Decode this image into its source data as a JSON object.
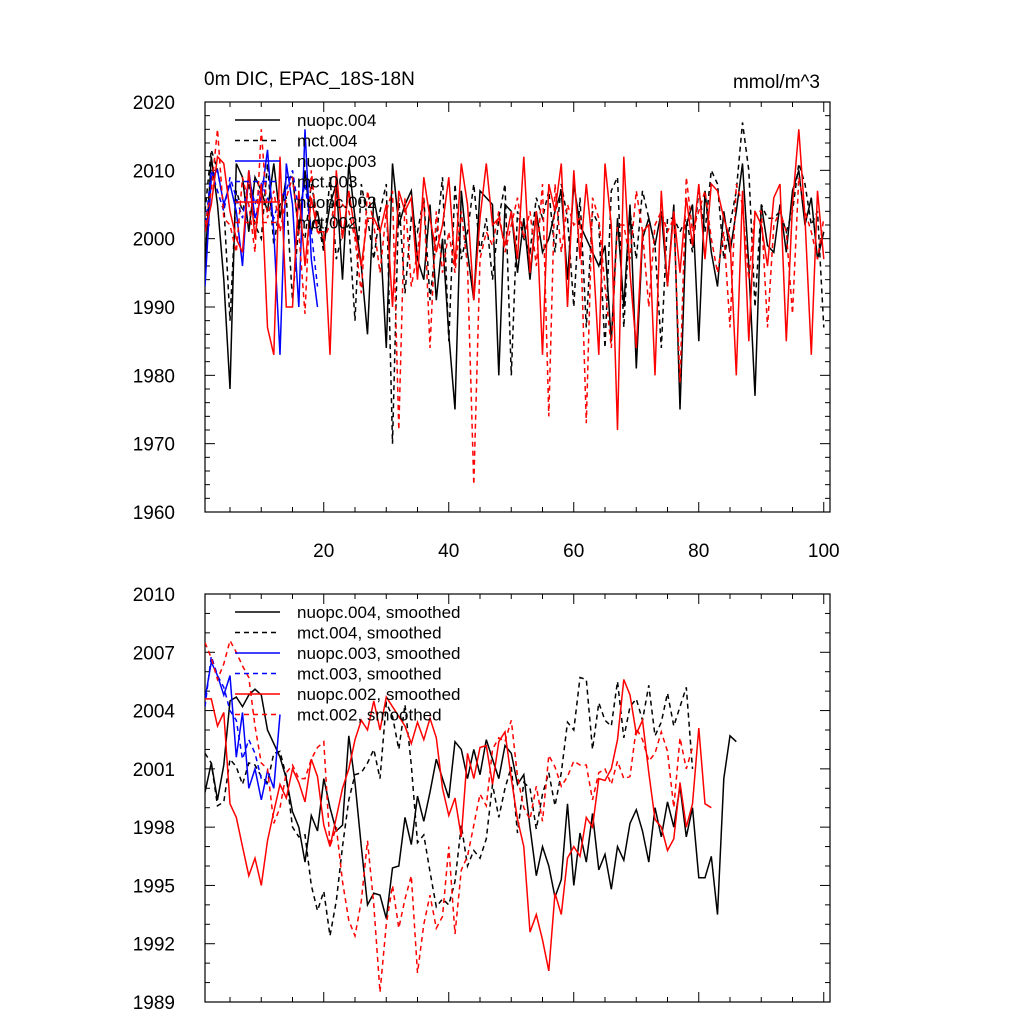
{
  "chart_data": [
    {
      "type": "line",
      "title": "0m DIC, EPAC_18S-18N",
      "units": "mmol/m^3",
      "xlim": [
        1,
        101
      ],
      "ylim": [
        1960,
        2020
      ],
      "xticks": [
        20,
        40,
        60,
        80,
        100
      ],
      "yticks": [
        1960,
        1970,
        1980,
        1990,
        2000,
        2010,
        2020
      ],
      "legend_position": "top-left",
      "series": [
        {
          "name": "nuopc.004",
          "color": "#000000",
          "dash": "solid",
          "x_start": 1,
          "values": [
            1996,
            2012,
            2005,
            1994,
            1978,
            2011,
            2009,
            2001,
            2009,
            2007,
            2004,
            2011,
            2003,
            2009,
            2009,
            2001,
            2010,
            2001,
            2004,
            1999,
            2005,
            2008,
            1994,
            2011,
            2003,
            1996,
            1986,
            2006,
            2001,
            1984,
            2011,
            2002,
            2005,
            2007,
            1997,
            1994,
            2005,
            1991,
            2000,
            1986,
            1975,
            2007,
            1998,
            1991,
            2007,
            2006,
            2005,
            1980,
            2005,
            2004,
            1995,
            2003,
            1994,
            2004,
            1998,
            2000,
            2004,
            2007,
            1994,
            2008,
            2002,
            2000,
            1998,
            1996,
            1999,
            1985,
            2003,
            1990,
            2005,
            1981,
            2000,
            2003,
            1999,
            2004,
            1993,
            2005,
            1975,
            2002,
            2005,
            1985,
            2007,
            1998,
            1993,
            2004,
            1998,
            2004,
            2011,
            1996,
            1977,
            2005,
            1999,
            1998,
            2005,
            1998,
            2007,
            2010,
            2002,
            2006,
            1997,
            2001
          ]
        },
        {
          "name": "mct.004",
          "color": "#000000",
          "dash": "dash",
          "x_start": 1,
          "values": [
            2004,
            2013,
            2010,
            2005,
            1988,
            2007,
            2004,
            2008,
            2002,
            2000,
            2011,
            1999,
            2005,
            2006,
            1991,
            2002,
            2000,
            2008,
            2003,
            1998,
            2009,
            1997,
            2001,
            2002,
            1988,
            2008,
            2003,
            1997,
            2004,
            2008,
            1970,
            2006,
            1992,
            2003,
            2001,
            2006,
            1991,
            2000,
            2009,
            1985,
            2008,
            1997,
            2001,
            2008,
            1998,
            2003,
            1994,
            2003,
            2008,
            1980,
            2004,
            2000,
            1998,
            2006,
            2003,
            2007,
            1998,
            2008,
            2003,
            1990,
            2006,
            1987,
            2004,
            2002,
            1984,
            2007,
            2009,
            1987,
            2004,
            1997,
            2007,
            2003,
            1999,
            1984,
            2003,
            2003,
            2001,
            2003,
            1998,
            2007,
            2001,
            2010,
            2008,
            1997,
            2002,
            2007,
            2017,
            2010,
            1990,
            2005,
            2003,
            2003,
            2004,
            2001,
            2004,
            2011,
            2008,
            2002,
            2004,
            1987
          ]
        },
        {
          "name": "nuopc.003",
          "color": "#0000ff",
          "dash": "solid",
          "x_start": 1,
          "values": [
            1993,
            2009,
            2010,
            2005,
            2008,
            2004,
            1996,
            2010,
            2003,
            2006,
            2013,
            2001,
            1983,
            2011,
            2005,
            1990,
            2016,
            1997,
            1990
          ]
        },
        {
          "name": "mct.003",
          "color": "#0000ff",
          "dash": "dash",
          "x_start": 1,
          "values": [
            2001,
            2010,
            2007,
            2004,
            2009,
            2006,
            2003,
            2009,
            2005,
            2008,
            2006,
            2003,
            2006,
            2007,
            2010,
            2004,
            2008,
            2001,
            1993
          ]
        },
        {
          "name": "nuopc.002",
          "color": "#ff0000",
          "dash": "solid",
          "x_start": 1,
          "values": [
            2001,
            2005,
            2012,
            2011,
            2004,
            2000,
            1998,
            2010,
            2000,
            2008,
            1987,
            1983,
            2012,
            1990,
            1990,
            2007,
            1996,
            2006,
            2001,
            2001,
            1983,
            2010,
            2000,
            2007,
            2001,
            1996,
            2003,
            2003,
            2001,
            2005,
            1990,
            2007,
            2004,
            2006,
            1994,
            2009,
            2003,
            1998,
            2002,
            2009,
            1996,
            2011,
            2005,
            1991,
            2003,
            2011,
            2002,
            2003,
            1999,
            2004,
            1997,
            2012,
            1995,
            2004,
            1983,
            2008,
            2004,
            2011,
            1990,
            2010,
            1997,
            2008,
            1999,
            1983,
            2011,
            2002,
            1972,
            2012,
            1995,
            1984,
            2001,
            2002,
            1980,
            2007,
            1993,
            2004,
            1995,
            2006,
            1999,
            2008,
            1997,
            2008,
            2007,
            2003,
            2000,
            1980,
            2007,
            1985,
            2004,
            2002,
            1996,
            2006,
            2008,
            1985,
            2005,
            2016,
            2003,
            1983,
            2007,
            1997
          ]
        },
        {
          "name": "mct.002",
          "color": "#ff0000",
          "dash": "dash",
          "x_start": 1,
          "values": [
            2002,
            2007,
            2016,
            2003,
            2002,
            1998,
            2009,
            2005,
            1998,
            2016,
            2003,
            2007,
            2001,
            2006,
            2009,
            2001,
            1989,
            2010,
            2001,
            2000,
            2002,
            2006,
            2005,
            2004,
            2000,
            1992,
            2007,
            2002,
            1995,
            2004,
            2007,
            1972,
            2006,
            1993,
            1998,
            2006,
            1984,
            2004,
            1995,
            2001,
            1995,
            2004,
            1996,
            1964,
            1997,
            2001,
            1999,
            2004,
            1998,
            2002,
            2006,
            2000,
            2004,
            1996,
            2008,
            1974,
            2008,
            1998,
            2005,
            2002,
            2003,
            1973,
            2006,
            2003,
            1993,
            1984,
            2002,
            2002,
            1997,
            2007,
            2001,
            1990,
            2002,
            2004,
            2001,
            2003,
            1979,
            2009,
            2001,
            2004,
            2007,
            2000,
            1995,
            2001,
            1987,
            2008,
            2005,
            1994,
            2004,
            2004,
            1987,
            2002,
            2004,
            2001,
            1989,
            2009,
            2004,
            2001,
            1997,
            2003
          ]
        }
      ]
    },
    {
      "type": "line",
      "xlim": [
        1,
        101
      ],
      "ylim": [
        1989,
        2010
      ],
      "yticks": [
        1989,
        1992,
        1995,
        1998,
        2001,
        2004,
        2007,
        2010
      ],
      "legend_position": "top-left",
      "series": [
        {
          "name": "nuopc.004, smoothed",
          "color": "#000000",
          "dash": "solid",
          "x_start": 1,
          "values": [
            1999.8,
            2001.3,
            1999.4,
            2001.2,
            2004.5,
            2004.7,
            2004.2,
            2004.8,
            2005.1,
            2004.8,
            2003.0,
            2002.3,
            2001.6,
            2000.5,
            1998.8,
            1998.0,
            1996.2,
            1998.6,
            1997.8,
            2000.5,
            1999.0,
            1997.8,
            1998.1,
            2002.7,
            2000.3,
            1997.0,
            1994.0,
            1994.6,
            1994.5,
            1993.3,
            1995.9,
            1996.0,
            1998.5,
            1997.1,
            1999.6,
            1998.3,
            1999.8,
            2001.5,
            2000.5,
            1999.5,
            2002.4,
            2002.0,
            2000.5,
            2002.0,
            2000.7,
            2002.5,
            2001.5,
            2000.5,
            2002.2,
            2001.8,
            2000.2,
            2000.7,
            1998.0,
            1995.5,
            1997.0,
            1996.0,
            1994.4,
            1995.3,
            1999.2,
            1995.0,
            1997.7,
            1996.2,
            1998.7,
            1995.8,
            1996.6,
            1994.8,
            1997.0,
            1996.3,
            1998.2,
            1998.9,
            1997.8,
            1996.2,
            1999.0,
            1997.5,
            1999.3,
            1998.0,
            2000.1,
            1997.5,
            1999.0,
            1995.4,
            1995.4,
            1996.5,
            1993.5,
            2000.5,
            2002.7,
            2002.4
          ]
        },
        {
          "name": "mct.004, smoothed",
          "color": "#000000",
          "dash": "dash",
          "x_start": 1,
          "values": [
            2001.8,
            2001.3,
            1999.1,
            1999.3,
            2001.5,
            2001.1,
            2000.2,
            2001.3,
            2001.2,
            2000.6,
            2000.3,
            2001.8,
            2001.9,
            2000.6,
            1998.0,
            1997.5,
            1997.6,
            1995.0,
            1993.7,
            1994.7,
            1992.4,
            1994.2,
            1997.0,
            1999.4,
            2000.7,
            2000.8,
            2001.3,
            2002.0,
            2000.5,
            2004.4,
            2003.7,
            2002.0,
            2004.3,
            2001.2,
            1997.2,
            1997.6,
            1995.7,
            1993.9,
            1994.3,
            1994.0,
            1995.2,
            1998.1,
            1996.0,
            1996.8,
            1996.4,
            1997.4,
            2000.2,
            1998.5,
            2000.0,
            2001.1,
            1997.7,
            2000.3,
            2000.0,
            1997.9,
            1999.7,
            2000.8,
            1999.1,
            2000.8,
            2003.4,
            2003.0,
            2005.7,
            2005.6,
            2002.0,
            2004.4,
            2003.5,
            2003.2,
            2005.5,
            2002.6,
            2004.2,
            2004.6,
            2003.5,
            2005.3,
            2002.7,
            2003.4,
            2004.9,
            2003.2,
            2004.2,
            2005.2,
            2001.0
          ]
        },
        {
          "name": "nuopc.003, smoothed",
          "color": "#0000ff",
          "dash": "solid",
          "x_start": 1,
          "values": [
            2004.6,
            2006.5,
            2005.8,
            2004.8,
            2005.8,
            2001.6,
            2003.9,
            2000.0,
            2001.0,
            1999.4,
            2000.9,
            2000.0,
            2003.8
          ]
        },
        {
          "name": "mct.003, smoothed",
          "color": "#0000ff",
          "dash": "dash",
          "x_start": 1,
          "values": [
            2004.2,
            2006.8,
            2005.8,
            2005.2,
            2004.0,
            2003.5,
            2001.5,
            2002.5,
            2001.8,
            2000.5,
            2000.2
          ]
        },
        {
          "name": "nuopc.002, smoothed",
          "color": "#ff0000",
          "dash": "solid",
          "x_start": 1,
          "values": [
            2004.6,
            2004.6,
            2003.2,
            2003.9,
            1999.2,
            1998.5,
            1997.0,
            1995.5,
            1996.4,
            1995.0,
            1997.3,
            1998.8,
            2000.2,
            1999.5,
            2001.0,
            2000.3,
            1999.3,
            2001.5,
            2000.6,
            1998.1,
            1997.0,
            1998.5,
            2000.0,
            2001.0,
            2002.5,
            2003.5,
            2003.0,
            2004.5,
            2003.0,
            2004.7,
            2004.2,
            2003.7,
            2003.2,
            2002.3,
            2003.4,
            2002.5,
            2003.6,
            2002.6,
            2000.0,
            1998.6,
            1999.5,
            1997.5,
            2001.8,
            2000.5,
            2002.1,
            2002.2,
            2000.2,
            2002.4,
            2002.9,
            2000.5,
            1998.4,
            1997.0,
            1992.6,
            1993.5,
            1992.2,
            1990.6,
            1994.6,
            1993.5,
            1996.4,
            1997.0,
            1996.5,
            1998.5,
            1998.0,
            2000.5,
            2000.4,
            2001.0,
            2002.5,
            2005.6,
            2004.8,
            2002.8,
            2003.5,
            2000.8,
            1998.4,
            1998.0,
            1996.8,
            1997.4,
            2000.3,
            1998.0,
            1999.2,
            2003.1,
            1999.2,
            1999.0
          ]
        },
        {
          "name": "mct.002, smoothed",
          "color": "#ff0000",
          "dash": "dash",
          "x_start": 1,
          "values": [
            2007.5,
            2006.7,
            2005.6,
            2006.4,
            2007.6,
            2007.0,
            2006.3,
            2005.7,
            2003.2,
            2001.3,
            2001.0,
            1998.2,
            1999.0,
            2000.8,
            2001.2,
            2000.5,
            2000.5,
            2001.5,
            2002.1,
            2002.4,
            1997.0,
            1998.0,
            1995.2,
            1993.2,
            1992.4,
            1994.2,
            1997.3,
            1994.0,
            1989.5,
            1993.0,
            1995.0,
            1992.8,
            1994.3,
            1995.5,
            1990.5,
            1993.0,
            1994.5,
            1992.8,
            1993.4,
            1997.0,
            1992.5,
            1995.8,
            1996.5,
            1998.1,
            1999.7,
            1999.1,
            2002.0,
            2002.6,
            2002.4,
            2003.5,
            2000.6,
            1999.0,
            1998.4,
            2000.1,
            1998.3,
            2001.7,
            2001.1,
            2000.1,
            2000.6,
            2001.4,
            2001.2,
            2001.2,
            1999.4,
            2000.8,
            2001.0,
            2000.2,
            2001.4,
            2000.5,
            2000.6,
            2003.1,
            2002.5,
            2001.4,
            2001.8,
            2002.9,
            2001.9,
            1999.0,
            2002.6,
            2001.0,
            2002.1
          ]
        }
      ]
    }
  ]
}
